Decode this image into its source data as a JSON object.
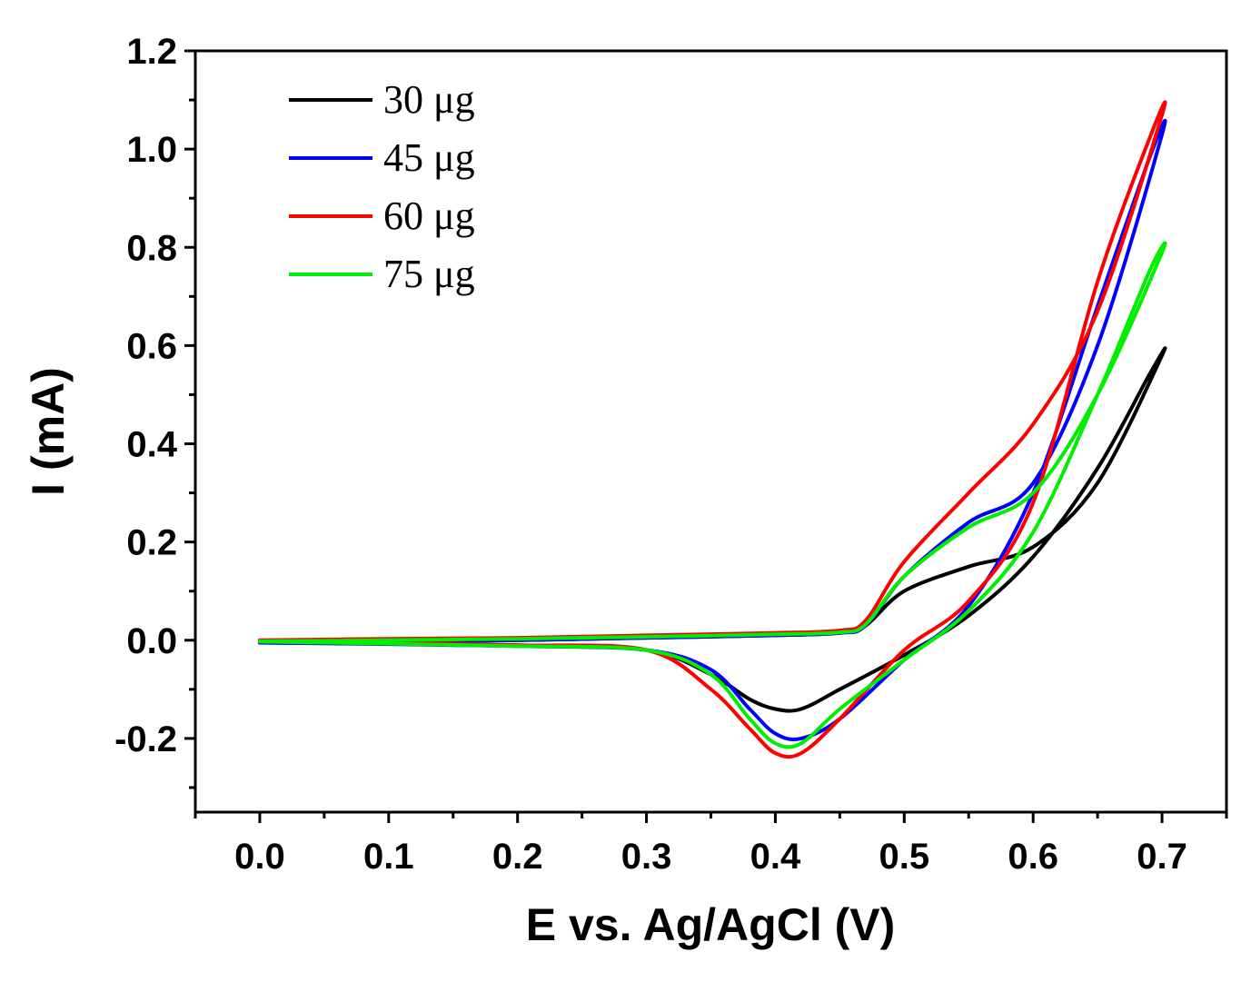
{
  "chart_data": {
    "type": "line",
    "title": "",
    "xlabel": "E vs. Ag/AgCl (V)",
    "ylabel": "I (mA)",
    "xlim": [
      -0.05,
      0.75
    ],
    "ylim": [
      -0.35,
      1.2
    ],
    "xticks": [
      0.0,
      0.1,
      0.2,
      0.3,
      0.4,
      0.5,
      0.6,
      0.7
    ],
    "xtick_labels": [
      "0.0",
      "0.1",
      "0.2",
      "0.3",
      "0.4",
      "0.5",
      "0.6",
      "0.7"
    ],
    "yticks": [
      -0.2,
      0.0,
      0.2,
      0.4,
      0.6,
      0.8,
      1.0,
      1.2
    ],
    "ytick_labels": [
      "-0.2",
      "0.0",
      "0.2",
      "0.4",
      "0.6",
      "0.8",
      "1.0",
      "1.2"
    ],
    "grid": false,
    "legend_position": "top-left",
    "series": [
      {
        "name": "30 μg",
        "color": "#000000",
        "x": [
          0.0,
          0.1,
          0.2,
          0.3,
          0.4,
          0.45,
          0.47,
          0.5,
          0.55,
          0.6,
          0.65,
          0.7,
          0.69,
          0.65,
          0.6,
          0.55,
          0.5,
          0.45,
          0.42,
          0.4,
          0.38,
          0.35,
          0.3,
          0.2,
          0.1,
          0.0
        ],
        "y": [
          -0.005,
          -0.003,
          0.0,
          0.005,
          0.01,
          0.015,
          0.03,
          0.1,
          0.15,
          0.19,
          0.32,
          0.58,
          0.54,
          0.35,
          0.17,
          0.05,
          -0.03,
          -0.1,
          -0.14,
          -0.14,
          -0.12,
          -0.07,
          -0.02,
          -0.01,
          -0.007,
          -0.005
        ]
      },
      {
        "name": "45 μg",
        "color": "#0000ff",
        "x": [
          0.0,
          0.1,
          0.2,
          0.3,
          0.4,
          0.45,
          0.47,
          0.5,
          0.55,
          0.6,
          0.65,
          0.7,
          0.69,
          0.65,
          0.6,
          0.55,
          0.5,
          0.45,
          0.42,
          0.4,
          0.38,
          0.35,
          0.3,
          0.2,
          0.1,
          0.0
        ],
        "y": [
          -0.005,
          -0.003,
          0.0,
          0.005,
          0.01,
          0.015,
          0.03,
          0.13,
          0.24,
          0.32,
          0.6,
          1.03,
          0.98,
          0.68,
          0.3,
          0.07,
          -0.04,
          -0.16,
          -0.2,
          -0.19,
          -0.14,
          -0.06,
          -0.02,
          -0.012,
          -0.008,
          -0.005
        ]
      },
      {
        "name": "60 μg",
        "color": "#ff0000",
        "x": [
          0.0,
          0.1,
          0.2,
          0.3,
          0.4,
          0.45,
          0.47,
          0.5,
          0.55,
          0.6,
          0.65,
          0.7,
          0.69,
          0.65,
          0.6,
          0.55,
          0.5,
          0.45,
          0.42,
          0.4,
          0.38,
          0.35,
          0.3,
          0.2,
          0.1,
          0.0
        ],
        "y": [
          0.0,
          0.003,
          0.005,
          0.01,
          0.015,
          0.02,
          0.04,
          0.16,
          0.3,
          0.44,
          0.67,
          1.07,
          1.02,
          0.73,
          0.28,
          0.08,
          -0.02,
          -0.16,
          -0.23,
          -0.23,
          -0.18,
          -0.1,
          -0.02,
          -0.01,
          -0.005,
          0.0
        ]
      },
      {
        "name": "75 μg",
        "color": "#00ee00",
        "x": [
          0.0,
          0.1,
          0.2,
          0.3,
          0.4,
          0.45,
          0.47,
          0.5,
          0.55,
          0.6,
          0.65,
          0.7,
          0.69,
          0.65,
          0.6,
          0.55,
          0.5,
          0.45,
          0.42,
          0.4,
          0.38,
          0.35,
          0.3,
          0.2,
          0.1,
          0.0
        ],
        "y": [
          -0.002,
          0.0,
          0.003,
          0.007,
          0.012,
          0.016,
          0.032,
          0.13,
          0.23,
          0.3,
          0.5,
          0.79,
          0.75,
          0.5,
          0.22,
          0.06,
          -0.04,
          -0.14,
          -0.21,
          -0.21,
          -0.16,
          -0.07,
          -0.02,
          -0.012,
          -0.007,
          -0.003
        ]
      }
    ]
  }
}
